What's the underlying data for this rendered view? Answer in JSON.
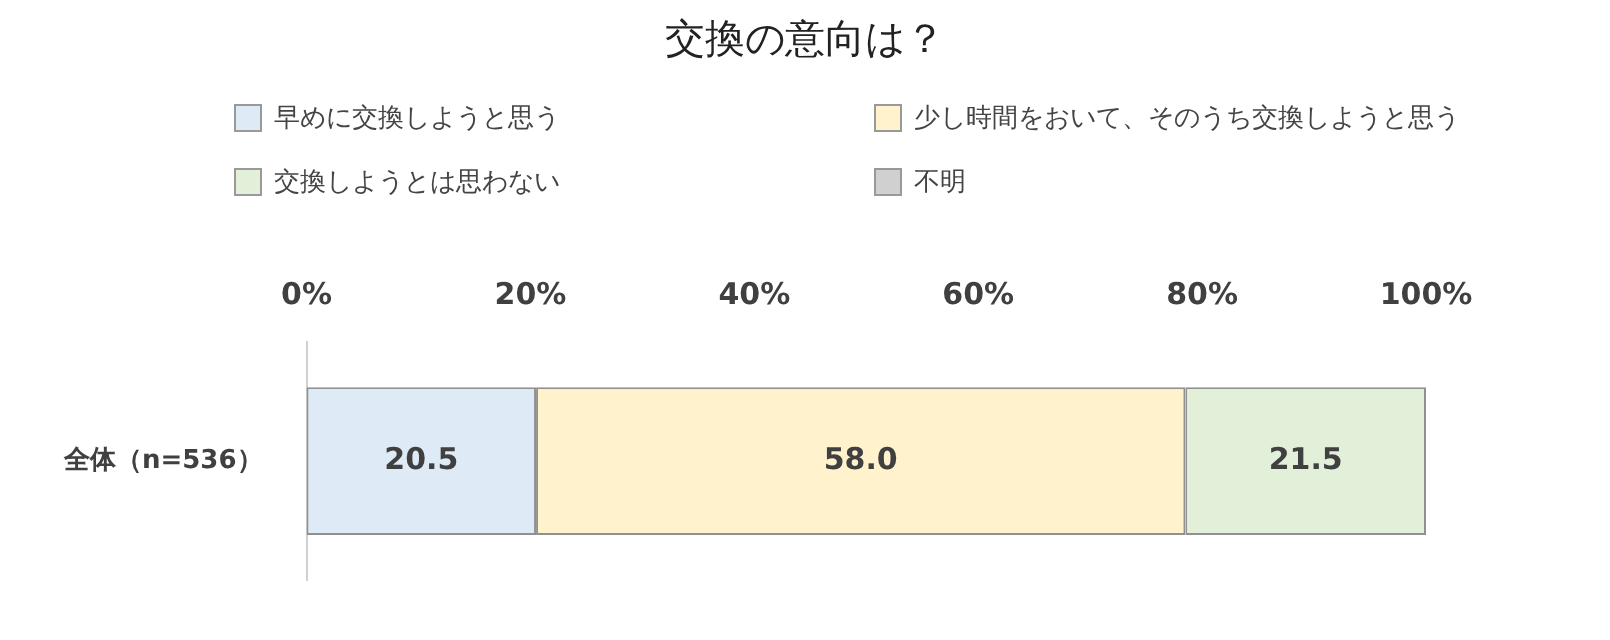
{
  "chart_data": {
    "type": "bar",
    "orientation": "horizontal",
    "stacked": true,
    "title": "交換の意向は？",
    "categories": [
      "全体（n=536）"
    ],
    "series": [
      {
        "name": "早めに交換しようと思う",
        "color": "#deebf7",
        "values": [
          20.5
        ],
        "value_labels": [
          "20.5"
        ]
      },
      {
        "name": "少し時間をおいて、そのうち交換しようと思う",
        "color": "#fff2cc",
        "values": [
          58.0
        ],
        "value_labels": [
          "58.0"
        ]
      },
      {
        "name": "交換しようとは思わない",
        "color": "#e2f0d9",
        "values": [
          21.5
        ],
        "value_labels": [
          "21.5"
        ]
      },
      {
        "name": "不明",
        "color": "#d0d0d0",
        "values": [
          0
        ],
        "value_labels": [
          null
        ]
      }
    ],
    "xlim": [
      0,
      100
    ],
    "xticks": [
      {
        "value": 0,
        "label": "0%"
      },
      {
        "value": 20,
        "label": "20%"
      },
      {
        "value": 40,
        "label": "40%"
      },
      {
        "value": 60,
        "label": "60%"
      },
      {
        "value": 80,
        "label": "80%"
      },
      {
        "value": 100,
        "label": "100%"
      }
    ],
    "grid": false,
    "legend": "top"
  }
}
